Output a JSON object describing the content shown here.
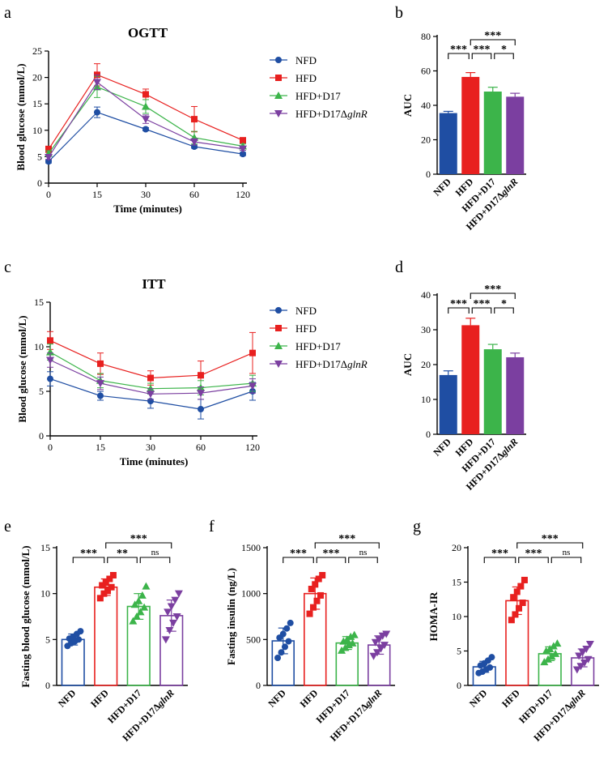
{
  "colors": {
    "NFD": "#1f4ea3",
    "HFD": "#e8201f",
    "D17": "#3cb44a",
    "D17g": "#7b3fa0",
    "axis": "#000000"
  },
  "panel_letters": {
    "a": "a",
    "b": "b",
    "c": "c",
    "d": "d",
    "e": "e",
    "f": "f",
    "g": "g"
  },
  "chart_data": [
    {
      "id": "a",
      "type": "line",
      "title": "OGTT",
      "xlabel": "Time (minutes)",
      "ylabel": "Blood glucose (mmol/L)",
      "x": [
        0,
        15,
        30,
        60,
        120
      ],
      "x_ticks": [
        "0",
        "15",
        "30",
        "60",
        "120"
      ],
      "ylim": [
        0,
        25
      ],
      "y_ticks": [
        0,
        5,
        10,
        15,
        20,
        25
      ],
      "series": [
        {
          "key": "NFD",
          "name": "NFD",
          "marker": "circle",
          "values": [
            4.1,
            13.4,
            10.2,
            6.9,
            5.5
          ],
          "err": [
            0.3,
            1.0,
            0.3,
            0.3,
            0.3
          ]
        },
        {
          "key": "HFD",
          "name": "HFD",
          "marker": "square",
          "values": [
            6.4,
            20.5,
            16.8,
            12.1,
            8.1
          ],
          "err": [
            0.6,
            2.1,
            1.0,
            2.4,
            0.5
          ]
        },
        {
          "key": "D17",
          "name": "HFD+D17",
          "marker": "triangle-up",
          "values": [
            5.6,
            18.2,
            14.5,
            8.6,
            7.0
          ],
          "err": [
            0.5,
            2.0,
            1.3,
            1.2,
            0.4
          ]
        },
        {
          "key": "D17g",
          "name": "HFD+D17",
          "name_italic": "glnR",
          "marker": "triangle-down",
          "values": [
            4.9,
            19.1,
            12.1,
            7.8,
            6.5
          ],
          "err": [
            0.4,
            1.4,
            0.8,
            0.6,
            0.3
          ]
        }
      ]
    },
    {
      "id": "b",
      "type": "bar",
      "ylabel": "AUC",
      "ylim": [
        0,
        80
      ],
      "y_ticks": [
        0,
        20,
        40,
        60,
        80
      ],
      "categories": [
        "NFD",
        "HFD",
        "HFD+D17",
        "HFD+D17"
      ],
      "category_italic": [
        "",
        "",
        "",
        "glnR"
      ],
      "values": [
        35.5,
        56.5,
        48.0,
        45.0
      ],
      "err": [
        1.0,
        2.5,
        2.5,
        2.0
      ],
      "significance": [
        {
          "from": 1,
          "to": 3,
          "label": "***",
          "level": 2
        },
        {
          "from": 0,
          "to": 1,
          "label": "***",
          "level": 1
        },
        {
          "from": 1,
          "to": 2,
          "label": "***",
          "level": 1
        },
        {
          "from": 2,
          "to": 3,
          "label": "*",
          "level": 1
        }
      ]
    },
    {
      "id": "c",
      "type": "line",
      "title": "ITT",
      "xlabel": "Time (minutes)",
      "ylabel": "Blood glucose (mmol/L)",
      "x": [
        0,
        15,
        30,
        60,
        120
      ],
      "x_ticks": [
        "0",
        "15",
        "30",
        "60",
        "120"
      ],
      "ylim": [
        0,
        15
      ],
      "y_ticks": [
        0,
        5,
        10,
        15
      ],
      "series": [
        {
          "key": "NFD",
          "name": "NFD",
          "marker": "circle",
          "values": [
            6.4,
            4.5,
            3.9,
            3.0,
            5.0
          ],
          "err": [
            0.8,
            0.5,
            0.8,
            1.1,
            1.0
          ]
        },
        {
          "key": "HFD",
          "name": "HFD",
          "marker": "square",
          "values": [
            10.7,
            8.1,
            6.5,
            6.8,
            9.3
          ],
          "err": [
            1.0,
            1.2,
            0.8,
            1.6,
            2.3
          ]
        },
        {
          "key": "D17",
          "name": "HFD+D17",
          "marker": "triangle-up",
          "values": [
            9.4,
            6.2,
            5.3,
            5.4,
            5.9
          ],
          "err": [
            0.9,
            0.8,
            0.6,
            0.8,
            0.9
          ]
        },
        {
          "key": "D17g",
          "name": "HFD+D17",
          "name_italic": "glnR",
          "marker": "triangle-down",
          "values": [
            8.5,
            5.9,
            4.7,
            4.8,
            5.6
          ],
          "err": [
            0.8,
            0.7,
            0.6,
            0.7,
            0.8
          ]
        }
      ]
    },
    {
      "id": "d",
      "type": "bar",
      "ylabel": "AUC",
      "ylim": [
        0,
        40
      ],
      "y_ticks": [
        0,
        10,
        20,
        30,
        40
      ],
      "categories": [
        "NFD",
        "HFD",
        "HFD+D17",
        "HFD+D17"
      ],
      "category_italic": [
        "",
        "",
        "",
        "glnR"
      ],
      "values": [
        17.0,
        31.3,
        24.4,
        22.1
      ],
      "err": [
        1.2,
        2.0,
        1.4,
        1.2
      ],
      "significance": [
        {
          "from": 1,
          "to": 3,
          "label": "***",
          "level": 2
        },
        {
          "from": 0,
          "to": 1,
          "label": "***",
          "level": 1
        },
        {
          "from": 1,
          "to": 2,
          "label": "***",
          "level": 1
        },
        {
          "from": 2,
          "to": 3,
          "label": "*",
          "level": 1
        }
      ]
    },
    {
      "id": "e",
      "type": "bar-scatter",
      "ylabel": "Fasting blood glucose (mmol/L)",
      "ylim": [
        0,
        15
      ],
      "y_ticks": [
        0,
        5,
        10,
        15
      ],
      "categories": [
        "NFD",
        "HFD",
        "HFD+D17",
        "HFD+D17"
      ],
      "category_italic": [
        "",
        "",
        "",
        "glnR"
      ],
      "values": [
        5.0,
        10.7,
        8.6,
        7.6
      ],
      "err": [
        0.6,
        0.9,
        1.4,
        1.7
      ],
      "points": [
        [
          4.3,
          4.6,
          4.8,
          5.0,
          5.1,
          5.3,
          5.6,
          5.9
        ],
        [
          9.5,
          10.0,
          10.3,
          10.7,
          10.9,
          11.2,
          11.6,
          12.0
        ],
        [
          7.0,
          7.5,
          8.0,
          8.5,
          8.8,
          9.2,
          9.8,
          10.8
        ],
        [
          5.0,
          6.0,
          6.8,
          7.5,
          8.0,
          8.6,
          9.3,
          10.0
        ]
      ],
      "significance": [
        {
          "from": 1,
          "to": 3,
          "label": "***",
          "level": 2
        },
        {
          "from": 0,
          "to": 1,
          "label": "***",
          "level": 1
        },
        {
          "from": 1,
          "to": 2,
          "label": "**",
          "level": 1
        },
        {
          "from": 2,
          "to": 3,
          "label": "ns",
          "level": 1
        }
      ]
    },
    {
      "id": "f",
      "type": "bar-scatter",
      "ylabel": "Fasting insulin (ng/L)",
      "ylim": [
        0,
        1500
      ],
      "y_ticks": [
        0,
        500,
        1000,
        1500
      ],
      "categories": [
        "NFD",
        "HFD",
        "HFD+D17",
        "HFD+D17"
      ],
      "category_italic": [
        "",
        "",
        "",
        "glnR"
      ],
      "values": [
        485,
        1000,
        462,
        440
      ],
      "err": [
        140,
        170,
        70,
        100
      ],
      "points": [
        [
          300,
          360,
          420,
          480,
          520,
          560,
          620,
          680
        ],
        [
          780,
          850,
          920,
          980,
          1050,
          1100,
          1160,
          1200
        ],
        [
          380,
          410,
          440,
          460,
          480,
          500,
          530,
          550
        ],
        [
          320,
          360,
          400,
          440,
          470,
          500,
          540,
          560
        ]
      ],
      "significance": [
        {
          "from": 1,
          "to": 3,
          "label": "***",
          "level": 2
        },
        {
          "from": 0,
          "to": 1,
          "label": "***",
          "level": 1
        },
        {
          "from": 1,
          "to": 2,
          "label": "***",
          "level": 1
        },
        {
          "from": 2,
          "to": 3,
          "label": "ns",
          "level": 1
        }
      ]
    },
    {
      "id": "g",
      "type": "bar-scatter",
      "ylabel": "HOMA-IR",
      "ylim": [
        0,
        20
      ],
      "y_ticks": [
        0,
        5,
        10,
        15,
        20
      ],
      "categories": [
        "NFD",
        "HFD",
        "HFD+D17",
        "HFD+D17"
      ],
      "category_italic": [
        "",
        "",
        "",
        "glnR"
      ],
      "values": [
        2.7,
        12.3,
        4.6,
        4.0
      ],
      "err": [
        0.8,
        2.0,
        1.0,
        1.3
      ],
      "points": [
        [
          1.8,
          2.0,
          2.3,
          2.6,
          2.9,
          3.2,
          3.6,
          4.1
        ],
        [
          9.5,
          10.3,
          11.2,
          12.0,
          12.8,
          13.6,
          14.4,
          15.3
        ],
        [
          3.4,
          3.8,
          4.2,
          4.6,
          5.0,
          5.3,
          5.7,
          6.1
        ],
        [
          2.3,
          2.8,
          3.3,
          3.8,
          4.3,
          4.8,
          5.3,
          6.0
        ]
      ],
      "significance": [
        {
          "from": 1,
          "to": 3,
          "label": "***",
          "level": 2
        },
        {
          "from": 0,
          "to": 1,
          "label": "***",
          "level": 1
        },
        {
          "from": 1,
          "to": 2,
          "label": "***",
          "level": 1
        },
        {
          "from": 2,
          "to": 3,
          "label": "ns",
          "level": 1
        }
      ]
    }
  ]
}
